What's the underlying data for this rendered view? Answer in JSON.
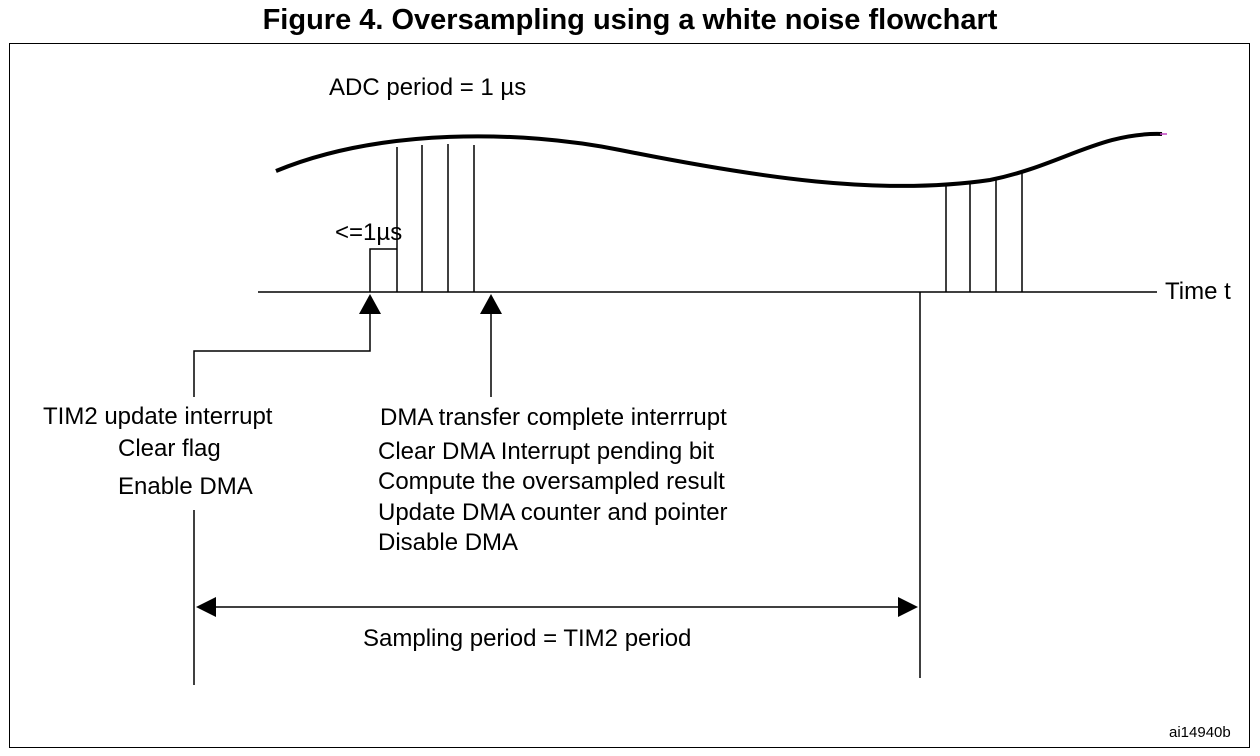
{
  "figure": {
    "title": "Figure 4. Oversampling using a white noise flowchart",
    "adc_period_label": "ADC period = 1 µs",
    "le_label": "<=1µs",
    "time_axis_label": "Time t",
    "tim2": {
      "lines": [
        "TIM2 update interrupt",
        "Clear flag",
        "Enable DMA"
      ]
    },
    "dma": {
      "lines": [
        "DMA transfer complete interrrupt",
        "Clear DMA Interrupt pending bit",
        "Compute the oversampled result",
        "Update DMA counter and pointer",
        "Disable DMA"
      ]
    },
    "sampling_period_label": "Sampling period = TIM2 period",
    "figure_id": "ai14940b"
  }
}
